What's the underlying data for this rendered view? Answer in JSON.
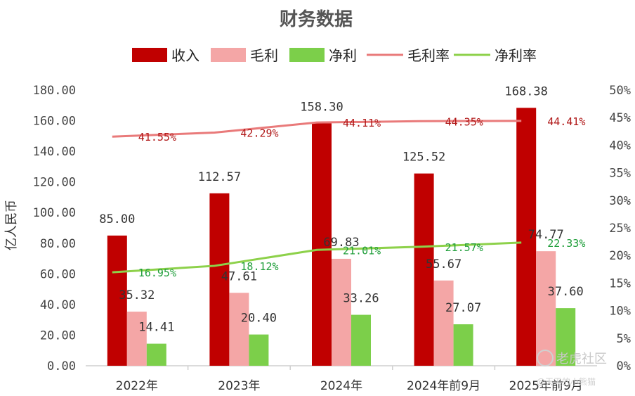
{
  "chart_data": {
    "type": "bar",
    "title": "财务数据",
    "ylabel": "亿人民币",
    "categories": [
      "2022年",
      "2023年",
      "2024年",
      "2024年前9月",
      "2025年前9月"
    ],
    "ylim": [
      0,
      180
    ],
    "y_ticks": [
      "0.00",
      "20.00",
      "40.00",
      "60.00",
      "80.00",
      "100.00",
      "120.00",
      "140.00",
      "160.00",
      "180.00"
    ],
    "y2lim": [
      0,
      50
    ],
    "y2_ticks": [
      "0%",
      "5%",
      "10%",
      "15%",
      "20%",
      "25%",
      "30%",
      "35%",
      "40%",
      "45%",
      "50%"
    ],
    "series": [
      {
        "name": "收入",
        "kind": "bar",
        "color": "#c00000",
        "values": [
          85.0,
          112.57,
          158.3,
          125.52,
          168.38
        ],
        "labels": [
          "85.00",
          "112.57",
          "158.30",
          "125.52",
          "168.38"
        ]
      },
      {
        "name": "毛利",
        "kind": "bar",
        "color": "#f4a6a6",
        "values": [
          35.32,
          47.61,
          69.83,
          55.67,
          74.77
        ],
        "labels": [
          "35.32",
          "47.61",
          "69.83",
          "55.67",
          "74.77"
        ]
      },
      {
        "name": "净利",
        "kind": "bar",
        "color": "#7ccf4a",
        "values": [
          14.41,
          20.4,
          33.26,
          27.07,
          37.6
        ],
        "labels": [
          "14.41",
          "20.40",
          "33.26",
          "27.07",
          "37.60"
        ]
      },
      {
        "name": "毛利率",
        "kind": "line",
        "axis": "right",
        "color": "#e97a7a",
        "values": [
          41.55,
          42.29,
          44.11,
          44.35,
          44.41
        ],
        "labels": [
          "41.55%",
          "42.29%",
          "44.11%",
          "44.35%",
          "44.41%"
        ]
      },
      {
        "name": "净利率",
        "kind": "line",
        "axis": "right",
        "color": "#8dd14a",
        "values": [
          16.95,
          18.12,
          21.01,
          21.57,
          22.33
        ],
        "labels": [
          "16.95%",
          "18.12%",
          "21.01%",
          "21.57%",
          "22.33%"
        ]
      }
    ],
    "legend": "top",
    "grid": false
  },
  "watermark": {
    "brand": "老虎社区",
    "sub": "@天天的小熊猫"
  }
}
